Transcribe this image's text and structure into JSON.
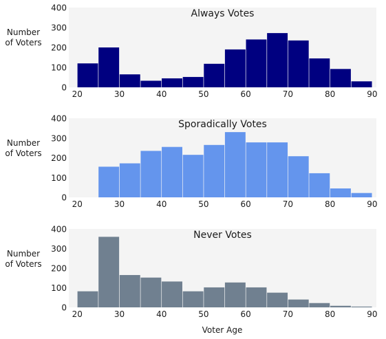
{
  "figure": {
    "xlabel": "Voter Age"
  },
  "chart_data": [
    {
      "type": "bar",
      "title": "Always Votes",
      "ylabel": "Number\nof Voters",
      "xlabel": "",
      "color": "#000080",
      "background": "#f4f4f4",
      "xlim": [
        18,
        91
      ],
      "ylim": [
        0,
        400
      ],
      "xticks": [
        20,
        30,
        40,
        50,
        60,
        70,
        80,
        90
      ],
      "yticks": [
        0,
        100,
        200,
        300,
        400
      ],
      "bin_width": 5,
      "bin_starts": [
        20,
        25,
        30,
        35,
        40,
        45,
        50,
        55,
        60,
        65,
        70,
        75,
        80,
        85
      ],
      "values": [
        120,
        200,
        65,
        33,
        45,
        52,
        118,
        190,
        240,
        272,
        235,
        145,
        92,
        30
      ],
      "grid": false,
      "legend": "none"
    },
    {
      "type": "bar",
      "title": "Sporadically Votes",
      "ylabel": "Number\nof Voters",
      "xlabel": "",
      "color": "#6495ed",
      "background": "#f4f4f4",
      "xlim": [
        18,
        91
      ],
      "ylim": [
        0,
        400
      ],
      "xticks": [
        20,
        30,
        40,
        50,
        60,
        70,
        80,
        90
      ],
      "yticks": [
        0,
        100,
        200,
        300,
        400
      ],
      "bin_width": 5,
      "bin_starts": [
        20,
        25,
        30,
        35,
        40,
        45,
        50,
        55,
        60,
        65,
        70,
        75,
        80,
        85
      ],
      "values": [
        0,
        155,
        172,
        235,
        255,
        215,
        265,
        330,
        278,
        278,
        208,
        122,
        45,
        22
      ],
      "grid": false,
      "legend": "none"
    },
    {
      "type": "bar",
      "title": "Never Votes",
      "ylabel": "Number\nof Voters",
      "xlabel": "Voter Age",
      "color": "#708090",
      "background": "#f4f4f4",
      "xlim": [
        18,
        91
      ],
      "ylim": [
        0,
        400
      ],
      "xticks": [
        20,
        30,
        40,
        50,
        60,
        70,
        80,
        90
      ],
      "yticks": [
        0,
        100,
        200,
        300,
        400
      ],
      "bin_width": 5,
      "bin_starts": [
        20,
        25,
        30,
        35,
        40,
        45,
        50,
        55,
        60,
        65,
        70,
        75,
        80,
        85
      ],
      "values": [
        82,
        360,
        165,
        152,
        132,
        82,
        102,
        127,
        102,
        75,
        40,
        22,
        8,
        4
      ],
      "grid": false,
      "legend": "none"
    }
  ]
}
